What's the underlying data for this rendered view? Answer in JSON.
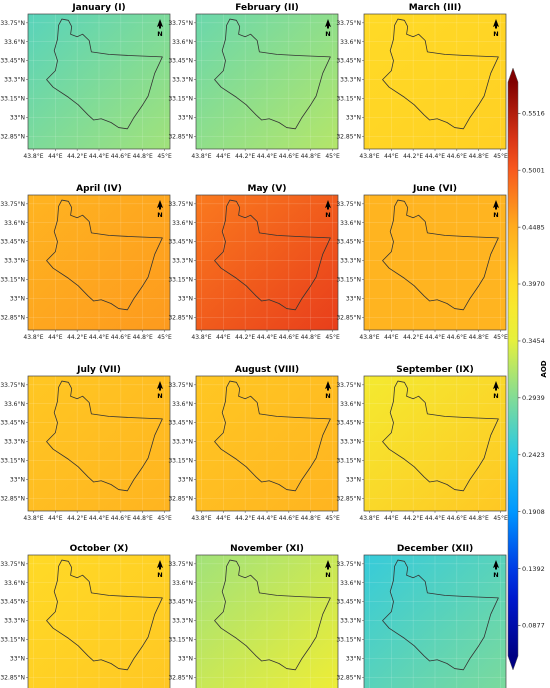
{
  "chart_data": {
    "type": "heatmap",
    "variable": "AOD",
    "colorbar": {
      "label": "AOD",
      "ticks": [
        0.0877,
        0.1392,
        0.1908,
        0.2423,
        0.2939,
        0.3454,
        0.397,
        0.4485,
        0.5001,
        0.5516
      ],
      "tick_labels": [
        "0.0877",
        "0.1392",
        "0.1908",
        "0.2423",
        "0.2939",
        "0.3454",
        "0.3970",
        "0.4485",
        "0.5001",
        "0.5516"
      ],
      "range": [
        0.06,
        0.58
      ],
      "colormap": "jet"
    },
    "xlim": [
      43.75,
      45.05
    ],
    "ylim": [
      32.75,
      33.82
    ],
    "x_ticks": [
      43.8,
      44.0,
      44.2,
      44.4,
      44.6,
      44.8,
      45.0
    ],
    "x_tick_labels": [
      "43.8°E",
      "44°E",
      "44.2°E",
      "44.4°E",
      "44.6°E",
      "44.8°E",
      "45°E"
    ],
    "y_ticks": [
      33.75,
      33.6,
      33.45,
      33.3,
      33.15,
      33.0,
      32.85
    ],
    "y_tick_labels": [
      "33.75°N",
      "33.6°N",
      "33.45°N",
      "33.3°N",
      "33.15°N",
      "33°N",
      "32.85°N"
    ],
    "north_label": "N",
    "panels": [
      {
        "title": "January (I)",
        "aod_nw": 0.27,
        "aod_se": 0.31
      },
      {
        "title": "February (II)",
        "aod_nw": 0.28,
        "aod_se": 0.32
      },
      {
        "title": "March (III)",
        "aod_nw": 0.4,
        "aod_se": 0.41
      },
      {
        "title": "April (IV)",
        "aod_nw": 0.44,
        "aod_se": 0.46
      },
      {
        "title": "May (V)",
        "aod_nw": 0.48,
        "aod_se": 0.52
      },
      {
        "title": "June (VI)",
        "aod_nw": 0.44,
        "aod_se": 0.44
      },
      {
        "title": "July (VII)",
        "aod_nw": 0.42,
        "aod_se": 0.44
      },
      {
        "title": "August (VIII)",
        "aod_nw": 0.42,
        "aod_se": 0.44
      },
      {
        "title": "September (IX)",
        "aod_nw": 0.37,
        "aod_se": 0.42
      },
      {
        "title": "October (X)",
        "aod_nw": 0.4,
        "aod_se": 0.42
      },
      {
        "title": "November (XI)",
        "aod_nw": 0.31,
        "aod_se": 0.36
      },
      {
        "title": "December (XII)",
        "aod_nw": 0.25,
        "aod_se": 0.29
      }
    ],
    "boundary_lonlat": [
      [
        44.03,
        33.73
      ],
      [
        44.06,
        33.78
      ],
      [
        44.12,
        33.77
      ],
      [
        44.15,
        33.72
      ],
      [
        44.14,
        33.66
      ],
      [
        44.2,
        33.64
      ],
      [
        44.25,
        33.66
      ],
      [
        44.31,
        33.61
      ],
      [
        44.33,
        33.52
      ],
      [
        44.49,
        33.5
      ],
      [
        44.7,
        33.49
      ],
      [
        44.98,
        33.48
      ],
      [
        44.91,
        33.35
      ],
      [
        44.85,
        33.17
      ],
      [
        44.8,
        33.1
      ],
      [
        44.72,
        33.0
      ],
      [
        44.66,
        32.91
      ],
      [
        44.58,
        32.92
      ],
      [
        44.51,
        32.96
      ],
      [
        44.42,
        32.99
      ],
      [
        44.35,
        32.98
      ],
      [
        44.3,
        33.02
      ],
      [
        44.21,
        33.1
      ],
      [
        44.12,
        33.16
      ],
      [
        43.98,
        33.24
      ],
      [
        43.92,
        33.3
      ],
      [
        44.0,
        33.37
      ],
      [
        44.02,
        33.45
      ],
      [
        43.99,
        33.53
      ],
      [
        44.02,
        33.62
      ],
      [
        44.03,
        33.73
      ]
    ]
  }
}
